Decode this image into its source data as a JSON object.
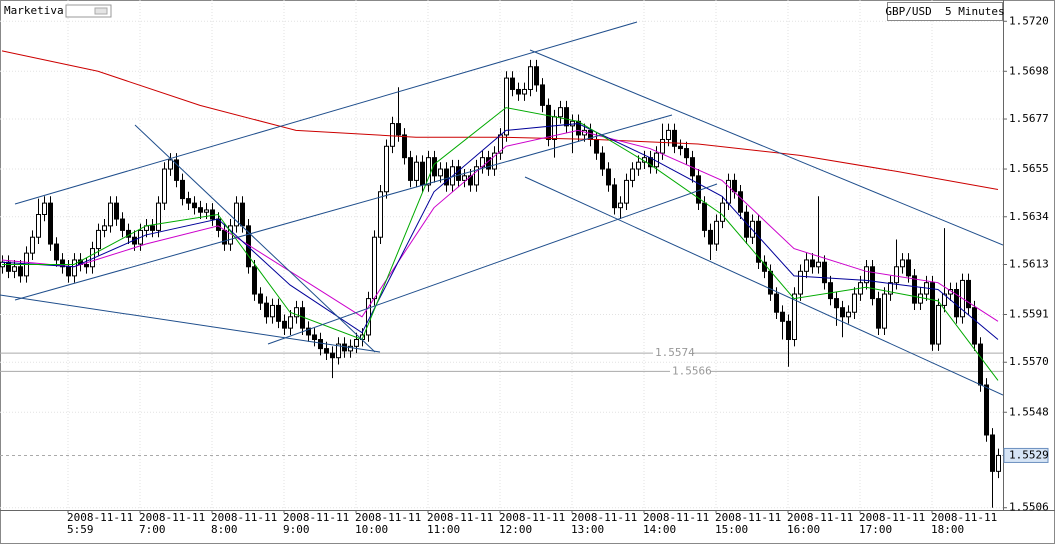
{
  "brand": "Marketiva",
  "chart_data": {
    "type": "candlestick",
    "title": "GBP/USD  5 Minutes",
    "categories": [
      null,
      null,
      null,
      null,
      null,
      null,
      null,
      null,
      null,
      null,
      null,
      "2008-11-11\n5:59",
      null,
      null,
      null,
      null,
      null,
      null,
      null,
      null,
      null,
      null,
      null,
      "2008-11-11\n7:00",
      null,
      null,
      null,
      null,
      null,
      null,
      null,
      null,
      null,
      null,
      null,
      "2008-11-11\n8:00",
      null,
      null,
      null,
      null,
      null,
      null,
      null,
      null,
      null,
      null,
      null,
      "2008-11-11\n9:00",
      null,
      null,
      null,
      null,
      null,
      null,
      null,
      null,
      null,
      null,
      null,
      "2008-11-11\n10:00",
      null,
      null,
      null,
      null,
      null,
      null,
      null,
      null,
      null,
      null,
      null,
      "2008-11-11\n11:00",
      null,
      null,
      null,
      null,
      null,
      null,
      null,
      null,
      null,
      null,
      null,
      "2008-11-11\n12:00",
      null,
      null,
      null,
      null,
      null,
      null,
      null,
      null,
      null,
      null,
      null,
      "2008-11-11\n13:00",
      null,
      null,
      null,
      null,
      null,
      null,
      null,
      null,
      null,
      null,
      null,
      "2008-11-11\n14:00",
      null,
      null,
      null,
      null,
      null,
      null,
      null,
      null,
      null,
      null,
      null,
      "2008-11-11\n15:00",
      null,
      null,
      null,
      null,
      null,
      null,
      null,
      null,
      null,
      null,
      null,
      "2008-11-11\n16:00",
      null,
      null,
      null,
      null,
      null,
      null,
      null,
      null,
      null,
      null,
      null,
      "2008-11-11\n17:00",
      null,
      null,
      null,
      null,
      null,
      null,
      null,
      null,
      null,
      null,
      null,
      "2008-11-11\n18:00",
      null,
      null,
      null,
      null,
      null,
      null,
      null,
      null,
      null,
      null,
      null
    ],
    "open": [
      1.5612,
      1.5614,
      1.561,
      1.5612,
      1.5608,
      1.5618,
      1.5625,
      1.5635,
      1.564,
      1.5622,
      1.5615,
      1.5612,
      1.5608,
      1.5615,
      1.5613,
      1.5612,
      1.562,
      1.5628,
      1.563,
      1.564,
      1.5633,
      1.5628,
      1.5625,
      1.5622,
      1.5628,
      1.563,
      1.5628,
      1.564,
      1.5655,
      1.5659,
      1.565,
      1.5642,
      1.564,
      1.5638,
      1.5636,
      1.5637,
      1.5633,
      1.5628,
      1.5622,
      1.563,
      1.564,
      1.563,
      1.5612,
      1.56,
      1.5596,
      1.559,
      1.5595,
      1.5588,
      1.5585,
      1.559,
      1.5594,
      1.5585,
      1.5582,
      1.558,
      1.5576,
      1.5574,
      1.5572,
      1.5578,
      1.5575,
      1.5577,
      1.558,
      1.5582,
      1.5598,
      1.5625,
      1.5645,
      1.5665,
      1.5675,
      1.567,
      1.566,
      1.565,
      1.5658,
      1.5648,
      1.566,
      1.5652,
      1.5655,
      1.5648,
      1.5656,
      1.565,
      1.5652,
      1.5648,
      1.5656,
      1.566,
      1.5655,
      1.5662,
      1.567,
      1.5695,
      1.569,
      1.5688,
      1.569,
      1.57,
      1.5692,
      1.5683,
      1.5668,
      1.5678,
      1.5682,
      1.5674,
      1.5676,
      1.567,
      1.5672,
      1.5668,
      1.5662,
      1.5655,
      1.5648,
      1.5638,
      1.564,
      1.565,
      1.5655,
      1.5658,
      1.566,
      1.5656,
      1.5662,
      1.5668,
      1.5672,
      1.5665,
      1.5664,
      1.566,
      1.5652,
      1.564,
      1.5628,
      1.5622,
      1.5632,
      1.564,
      1.565,
      1.5645,
      1.5636,
      1.5625,
      1.5632,
      1.5614,
      1.561,
      1.56,
      1.5592,
      1.5588,
      1.558,
      1.56,
      1.561,
      1.5615,
      1.5612,
      1.5614,
      1.5605,
      1.5598,
      1.5594,
      1.559,
      1.5592,
      1.56,
      1.5605,
      1.5612,
      1.5598,
      1.5585,
      1.56,
      1.5605,
      1.5612,
      1.5615,
      1.5608,
      1.5596,
      1.56,
      1.5605,
      1.5578,
      1.5595,
      1.56,
      1.5602,
      1.559,
      1.5606,
      1.5594,
      1.5578,
      1.556,
      1.5538,
      1.5522
    ],
    "high": [
      1.5617,
      1.5617,
      1.5615,
      1.5615,
      1.5621,
      1.5628,
      1.5642,
      1.5643,
      1.5643,
      1.5625,
      1.5618,
      1.5615,
      1.5618,
      1.5618,
      1.5616,
      1.5623,
      1.5631,
      1.5633,
      1.5643,
      1.5643,
      1.5636,
      1.5631,
      1.5628,
      1.5631,
      1.5633,
      1.5633,
      1.5643,
      1.5658,
      1.5662,
      1.5662,
      1.5653,
      1.5645,
      1.5643,
      1.5641,
      1.564,
      1.564,
      1.5636,
      1.5631,
      1.5633,
      1.5643,
      1.5643,
      1.5633,
      1.5615,
      1.5603,
      1.5599,
      1.5598,
      1.5598,
      1.5591,
      1.5593,
      1.5597,
      1.5597,
      1.5588,
      1.5585,
      1.5583,
      1.5579,
      1.5577,
      1.5581,
      1.5581,
      1.558,
      1.5583,
      1.5585,
      1.5601,
      1.5628,
      1.5648,
      1.5668,
      1.5678,
      1.5691,
      1.5673,
      1.5663,
      1.5661,
      1.5661,
      1.5663,
      1.5663,
      1.5658,
      1.5658,
      1.5659,
      1.5659,
      1.5655,
      1.5655,
      1.5659,
      1.5663,
      1.5663,
      1.5665,
      1.5673,
      1.5698,
      1.5698,
      1.5693,
      1.5693,
      1.5703,
      1.5703,
      1.5695,
      1.5686,
      1.5681,
      1.5685,
      1.5685,
      1.5679,
      1.5679,
      1.5675,
      1.5675,
      1.5671,
      1.5665,
      1.5658,
      1.5651,
      1.5643,
      1.5653,
      1.5658,
      1.5661,
      1.5663,
      1.5663,
      1.5665,
      1.5675,
      1.5675,
      1.5675,
      1.5668,
      1.5667,
      1.5663,
      1.5655,
      1.5643,
      1.5631,
      1.5635,
      1.5643,
      1.5653,
      1.5653,
      1.5648,
      1.5639,
      1.5635,
      1.5635,
      1.5617,
      1.5613,
      1.5603,
      1.5595,
      1.5591,
      1.5603,
      1.5613,
      1.5618,
      1.5618,
      1.5643,
      1.5617,
      1.5608,
      1.5601,
      1.5597,
      1.5595,
      1.5603,
      1.5608,
      1.5615,
      1.5615,
      1.5601,
      1.5603,
      1.5608,
      1.5624,
      1.5618,
      1.5618,
      1.5611,
      1.5603,
      1.5608,
      1.5608,
      1.5598,
      1.5629,
      1.5605,
      1.5605,
      1.5609,
      1.5609,
      1.5597,
      1.5581,
      1.5563,
      1.5541,
      1.5532
    ],
    "low": [
      1.5609,
      1.5607,
      1.5607,
      1.5605,
      1.5605,
      1.5615,
      1.5622,
      1.5632,
      1.5619,
      1.5612,
      1.5609,
      1.5605,
      1.5605,
      1.561,
      1.5609,
      1.5609,
      1.5617,
      1.5625,
      1.5627,
      1.563,
      1.5625,
      1.5622,
      1.5619,
      1.5619,
      1.5625,
      1.5625,
      1.5625,
      1.5637,
      1.5652,
      1.5647,
      1.5639,
      1.5637,
      1.5635,
      1.5633,
      1.5633,
      1.563,
      1.5625,
      1.5619,
      1.5619,
      1.5627,
      1.5627,
      1.5609,
      1.5597,
      1.5593,
      1.5587,
      1.5587,
      1.5585,
      1.5582,
      1.5582,
      1.5587,
      1.5582,
      1.5579,
      1.5577,
      1.5573,
      1.5571,
      1.5563,
      1.5569,
      1.5572,
      1.5572,
      1.5574,
      1.5577,
      1.5579,
      1.5595,
      1.5622,
      1.5642,
      1.5662,
      1.5667,
      1.5657,
      1.5647,
      1.5647,
      1.5645,
      1.5645,
      1.5649,
      1.5649,
      1.5645,
      1.5645,
      1.5647,
      1.5647,
      1.5645,
      1.5645,
      1.5653,
      1.5652,
      1.5652,
      1.5659,
      1.5667,
      1.5687,
      1.5685,
      1.5685,
      1.5687,
      1.5689,
      1.568,
      1.5665,
      1.566,
      1.5675,
      1.5671,
      1.5662,
      1.5667,
      1.5667,
      1.5665,
      1.5659,
      1.5652,
      1.5645,
      1.5635,
      1.5633,
      1.5637,
      1.5647,
      1.5652,
      1.5655,
      1.5653,
      1.5653,
      1.5659,
      1.5665,
      1.5662,
      1.5661,
      1.5657,
      1.5649,
      1.5637,
      1.5625,
      1.5615,
      1.5619,
      1.5629,
      1.5637,
      1.5642,
      1.5633,
      1.5622,
      1.5622,
      1.5611,
      1.5607,
      1.5597,
      1.5589,
      1.558,
      1.5568,
      1.5577,
      1.5597,
      1.5607,
      1.5609,
      1.5609,
      1.5602,
      1.5595,
      1.5586,
      1.5581,
      1.5587,
      1.5589,
      1.5597,
      1.5602,
      1.5595,
      1.5582,
      1.5582,
      1.5597,
      1.5602,
      1.5609,
      1.5605,
      1.5593,
      1.5593,
      1.5597,
      1.5575,
      1.5575,
      1.5592,
      1.5597,
      1.5587,
      1.5587,
      1.5591,
      1.5575,
      1.5557,
      1.5535,
      1.5506,
      1.5519
    ],
    "close": [
      1.5614,
      1.561,
      1.5612,
      1.5608,
      1.5618,
      1.5625,
      1.5635,
      1.564,
      1.5622,
      1.5615,
      1.5612,
      1.5608,
      1.5615,
      1.5613,
      1.5612,
      1.562,
      1.5628,
      1.563,
      1.564,
      1.5633,
      1.5628,
      1.5625,
      1.5622,
      1.5628,
      1.563,
      1.5628,
      1.564,
      1.5655,
      1.5659,
      1.565,
      1.5642,
      1.564,
      1.5638,
      1.5636,
      1.5637,
      1.5633,
      1.5628,
      1.5622,
      1.563,
      1.564,
      1.563,
      1.5612,
      1.56,
      1.5596,
      1.559,
      1.5595,
      1.5588,
      1.5585,
      1.559,
      1.5594,
      1.5585,
      1.5582,
      1.558,
      1.5576,
      1.5574,
      1.5572,
      1.5578,
      1.5575,
      1.5577,
      1.558,
      1.5582,
      1.5598,
      1.5625,
      1.5645,
      1.5665,
      1.5675,
      1.567,
      1.566,
      1.565,
      1.5658,
      1.5648,
      1.566,
      1.5652,
      1.5655,
      1.5648,
      1.5656,
      1.565,
      1.5652,
      1.5648,
      1.5656,
      1.566,
      1.5655,
      1.5662,
      1.567,
      1.5695,
      1.569,
      1.5688,
      1.569,
      1.57,
      1.5692,
      1.5683,
      1.5668,
      1.5678,
      1.5682,
      1.5674,
      1.5676,
      1.567,
      1.5672,
      1.5668,
      1.5662,
      1.5655,
      1.5648,
      1.5638,
      1.564,
      1.565,
      1.5655,
      1.5658,
      1.566,
      1.5656,
      1.5662,
      1.5668,
      1.5672,
      1.5665,
      1.5664,
      1.566,
      1.5652,
      1.564,
      1.5628,
      1.5622,
      1.5632,
      1.564,
      1.565,
      1.5645,
      1.5636,
      1.5625,
      1.5632,
      1.5614,
      1.561,
      1.56,
      1.5592,
      1.5588,
      1.558,
      1.56,
      1.561,
      1.5615,
      1.5612,
      1.5614,
      1.5605,
      1.5598,
      1.5594,
      1.559,
      1.5592,
      1.56,
      1.5605,
      1.5612,
      1.5598,
      1.5585,
      1.56,
      1.5605,
      1.5612,
      1.5615,
      1.5608,
      1.5596,
      1.56,
      1.5605,
      1.5578,
      1.5595,
      1.56,
      1.5602,
      1.559,
      1.5606,
      1.5594,
      1.5578,
      1.556,
      1.5538,
      1.5522,
      1.5529
    ],
    "up_color": "#ffffff",
    "down_color": "#000000",
    "series": [
      {
        "color": "#cc0000",
        "x": [
          0,
          16,
          33,
          49,
          69,
          83,
          99,
          116,
          133,
          149,
          166
        ],
        "values": [
          1.5707,
          1.5698,
          1.5683,
          1.5672,
          1.5669,
          1.5669,
          1.5668,
          1.5666,
          1.5661,
          1.5654,
          1.5646
        ]
      },
      {
        "color": "#cc00cc",
        "x": [
          0,
          12,
          24,
          36,
          48,
          60,
          72,
          84,
          96,
          108,
          120,
          132,
          144,
          156,
          166
        ],
        "values": [
          1.5615,
          1.5612,
          1.5622,
          1.563,
          1.561,
          1.559,
          1.5638,
          1.5665,
          1.5672,
          1.5664,
          1.565,
          1.562,
          1.561,
          1.5605,
          1.5588
        ]
      },
      {
        "color": "#000099",
        "x": [
          0,
          12,
          24,
          36,
          48,
          60,
          72,
          84,
          96,
          108,
          120,
          132,
          144,
          156,
          166
        ],
        "values": [
          1.5614,
          1.5612,
          1.5626,
          1.5633,
          1.5604,
          1.5583,
          1.5645,
          1.5672,
          1.5675,
          1.566,
          1.5643,
          1.5608,
          1.5606,
          1.5602,
          1.558
        ]
      },
      {
        "color": "#00aa00",
        "x": [
          0,
          12,
          24,
          36,
          48,
          60,
          72,
          84,
          96,
          108,
          120,
          132,
          144,
          156,
          166
        ],
        "values": [
          1.5613,
          1.5613,
          1.563,
          1.5635,
          1.5592,
          1.558,
          1.5657,
          1.5682,
          1.5676,
          1.5657,
          1.5635,
          1.5598,
          1.5603,
          1.5597,
          1.5562
        ]
      }
    ],
    "ylim": [
      1.5505,
      1.5721
    ],
    "yticks": [
      {
        "value": 1.572,
        "label": "1.5720"
      },
      1.5698,
      1.5677,
      1.5655,
      1.5634,
      1.5613,
      1.5591,
      {
        "value": 1.557,
        "label": "1.5570"
      },
      1.5548,
      1.5506
    ],
    "levels": [
      1.5574,
      1.5566
    ],
    "last_price": 1.5529,
    "grid": true
  }
}
